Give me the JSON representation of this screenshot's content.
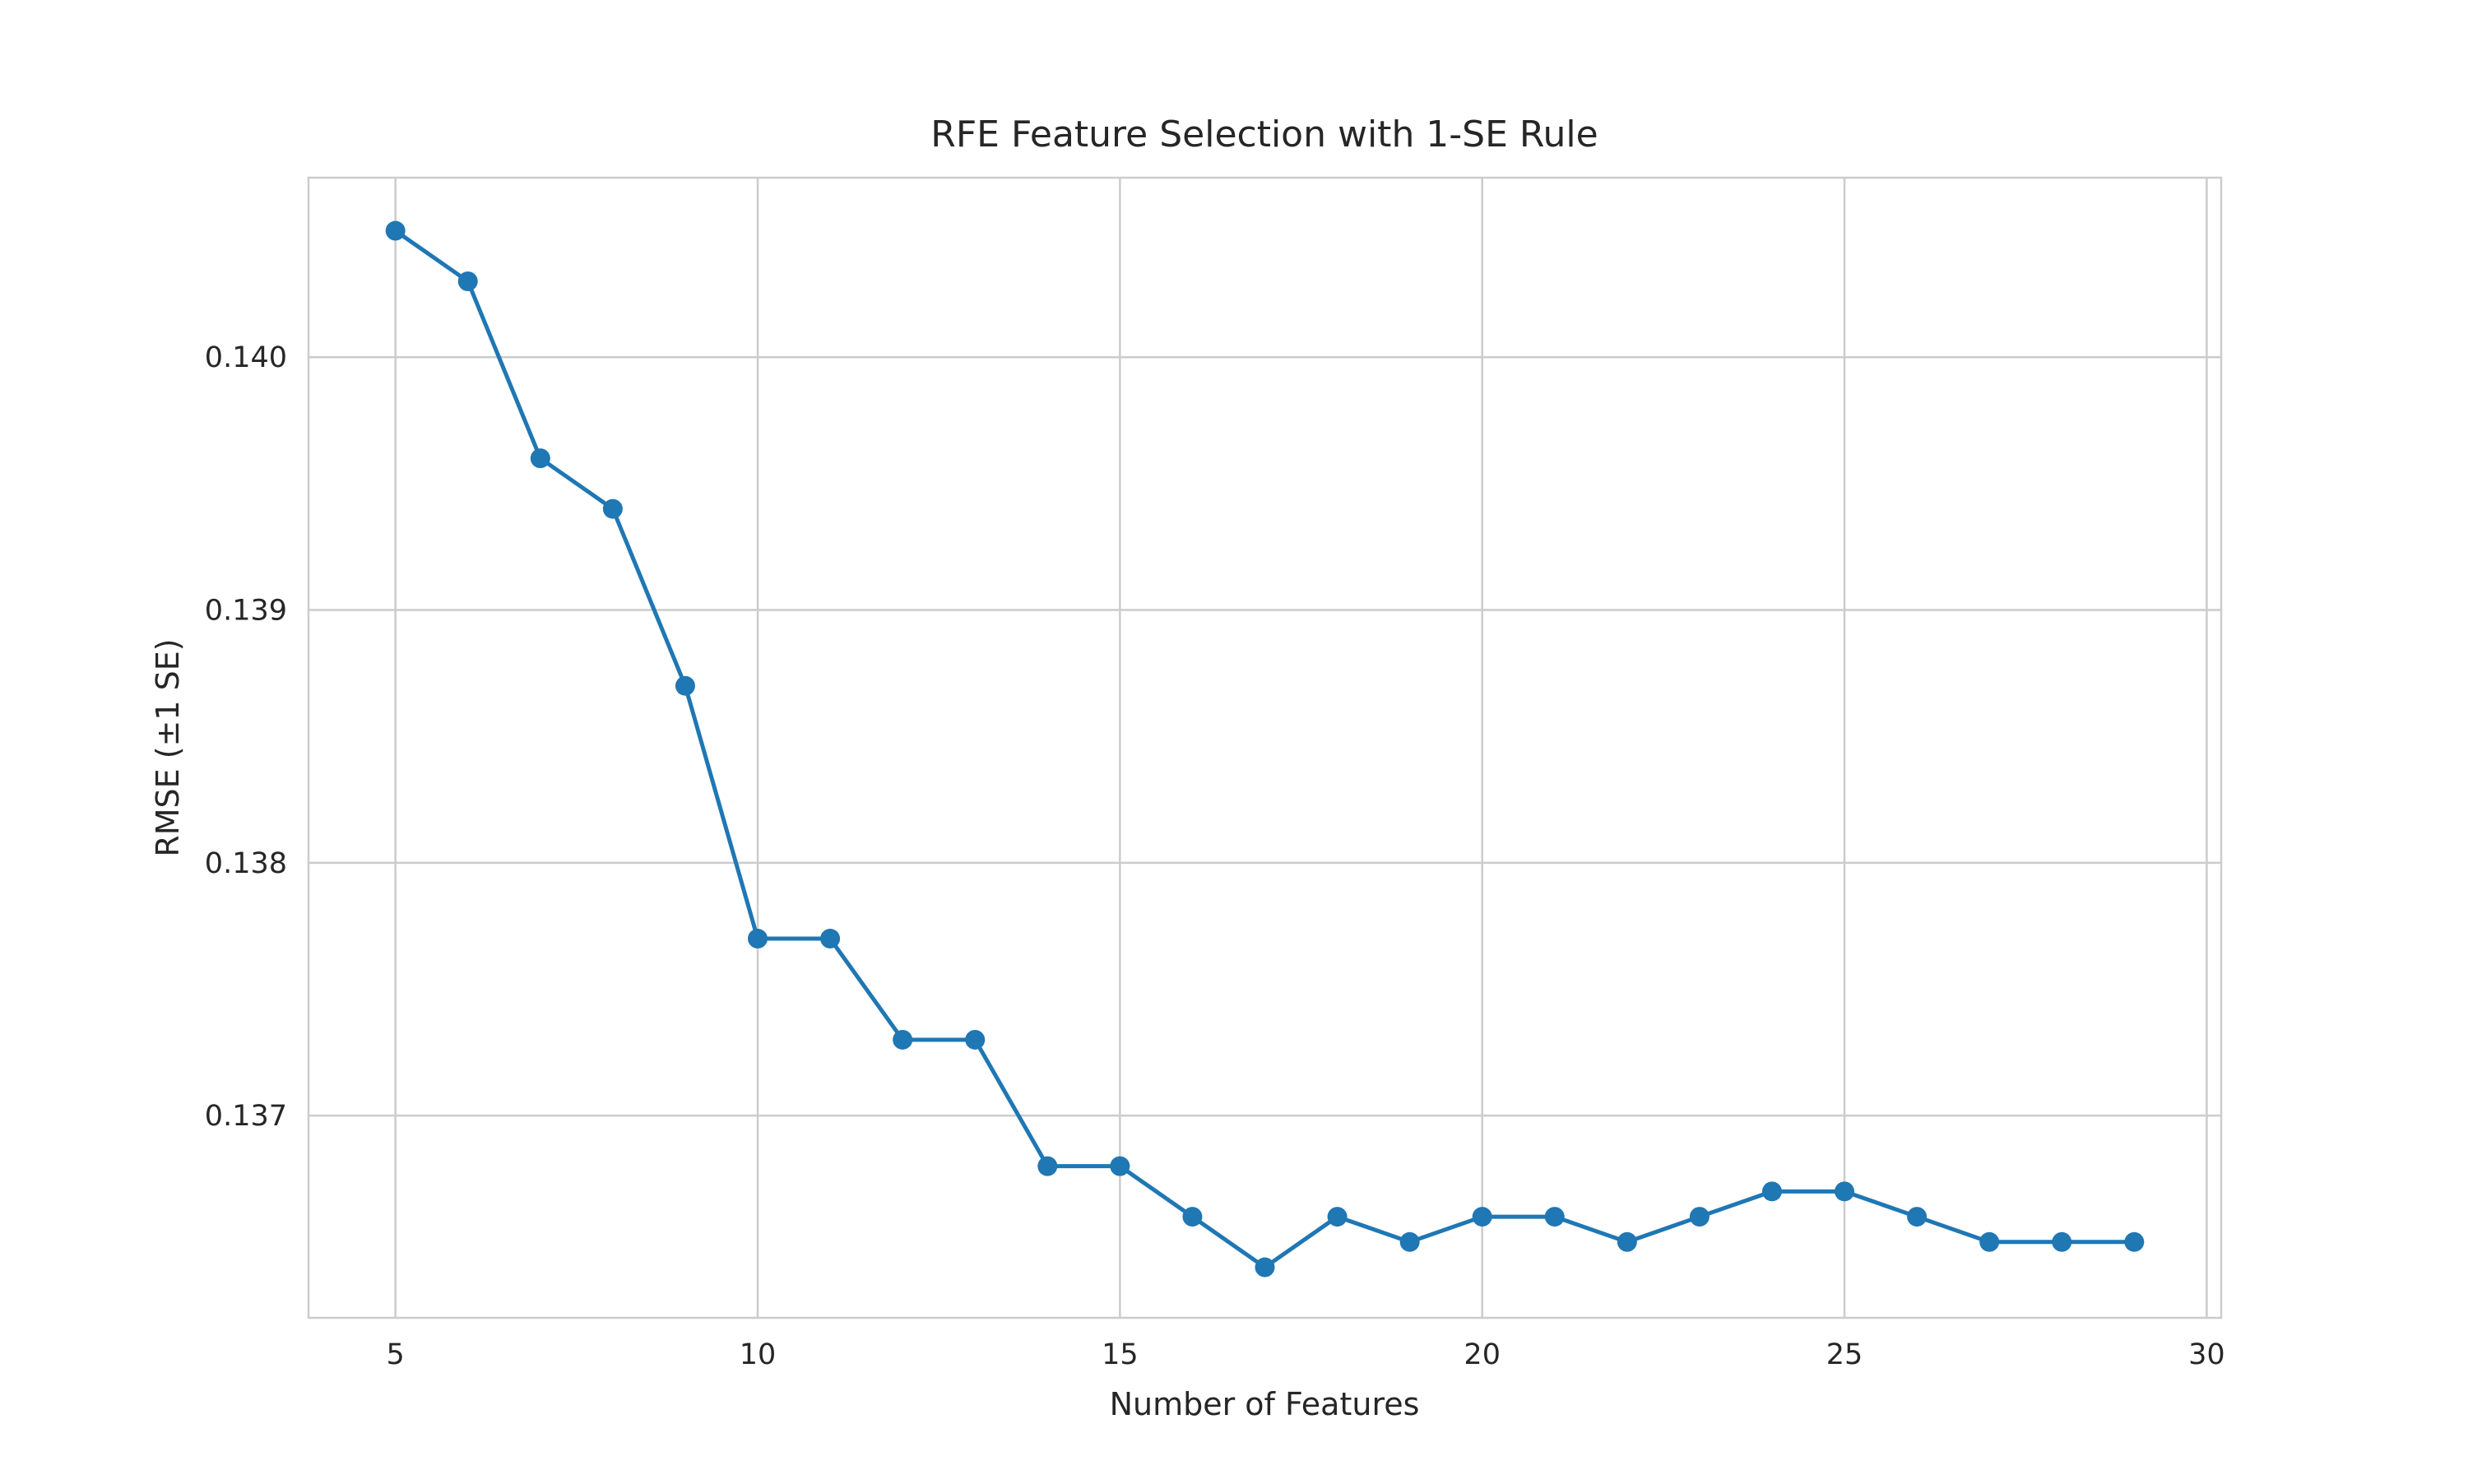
{
  "chart_data": {
    "type": "line",
    "title": "RFE Feature Selection with 1-SE Rule",
    "xlabel": "Number of Features",
    "ylabel": "RMSE (±1 SE)",
    "xlim": [
      3.8,
      30.2
    ],
    "ylim": [
      0.1362,
      0.14071
    ],
    "x_ticks": [
      5,
      10,
      15,
      20,
      25,
      30
    ],
    "x_tick_labels": [
      "5",
      "10",
      "15",
      "20",
      "25",
      "30"
    ],
    "y_ticks": [
      0.137,
      0.138,
      0.139,
      0.14
    ],
    "y_tick_labels": [
      "0.137",
      "0.138",
      "0.139",
      "0.140"
    ],
    "grid": true,
    "series": [
      {
        "color": "#1f77b4",
        "marker": "circle",
        "x": [
          5,
          6,
          7,
          8,
          9,
          10,
          11,
          12,
          13,
          14,
          15,
          16,
          17,
          18,
          19,
          20,
          21,
          22,
          23,
          24,
          25,
          26,
          27,
          28,
          29
        ],
        "y": [
          0.1405,
          0.1403,
          0.1396,
          0.1394,
          0.1387,
          0.1377,
          0.1377,
          0.1373,
          0.1373,
          0.1368,
          0.1368,
          0.1366,
          0.1364,
          0.1366,
          0.1365,
          0.1366,
          0.1366,
          0.1365,
          0.1366,
          0.1367,
          0.1367,
          0.1366,
          0.1365,
          0.1365,
          0.1365
        ]
      }
    ]
  }
}
